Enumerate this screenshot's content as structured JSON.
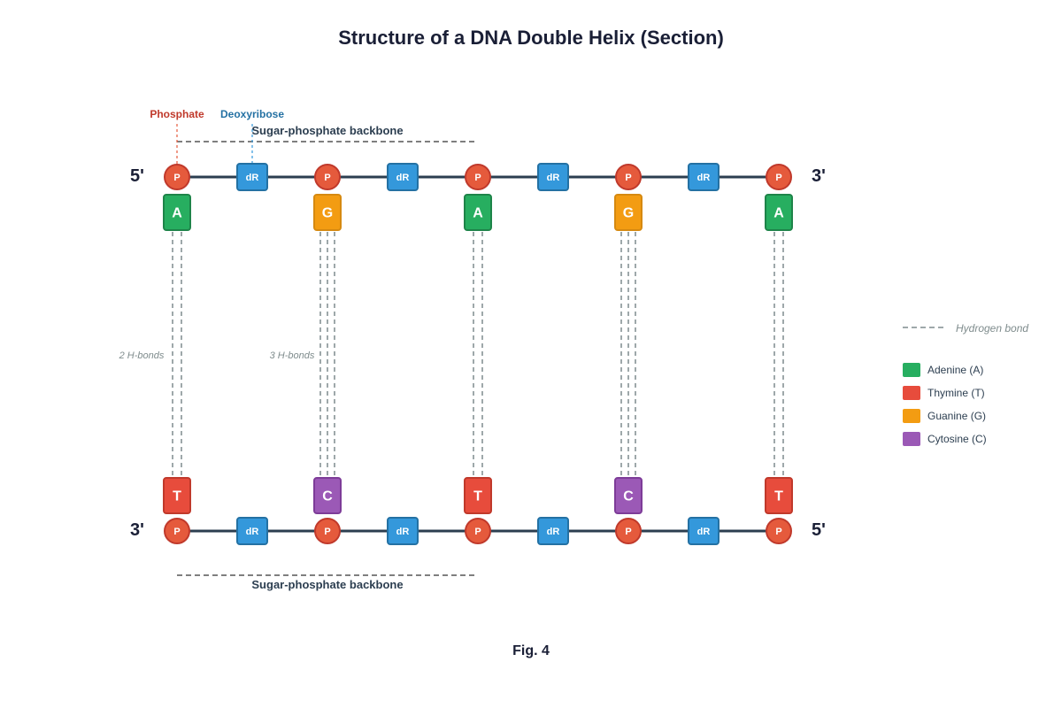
{
  "title": "Structure of a DNA Double Helix (Section)",
  "caption": "Fig. 4",
  "strands": {
    "top": {
      "left_end": "5'",
      "right_end": "3'"
    },
    "bottom": {
      "left_end": "3'",
      "right_end": "5'"
    }
  },
  "backbone_label": "Sugar-phosphate backbone",
  "callouts": {
    "phosphate": "Phosphate",
    "deoxyribose": "Deoxyribose"
  },
  "node_labels": {
    "phosphate": "P",
    "sugar": "dR"
  },
  "base_pairs": [
    {
      "top": "A",
      "bottom": "T",
      "bonds": 2
    },
    {
      "top": "G",
      "bottom": "C",
      "bonds": 3
    },
    {
      "top": "A",
      "bottom": "T",
      "bonds": 2
    },
    {
      "top": "G",
      "bottom": "C",
      "bonds": 3
    },
    {
      "top": "A",
      "bottom": "T",
      "bonds": 2
    }
  ],
  "bond_annotations": [
    "2 H-bonds",
    "3 H-bonds"
  ],
  "legend": {
    "hydrogen_bond": "Hydrogen bond",
    "items": [
      {
        "label": "Adenine (A)",
        "color": "#27ae60"
      },
      {
        "label": "Thymine (T)",
        "color": "#e74c3c"
      },
      {
        "label": "Guanine (G)",
        "color": "#f39c12"
      },
      {
        "label": "Cytosine (C)",
        "color": "#9b59b6"
      }
    ]
  },
  "colors": {
    "A": "#27ae60",
    "T": "#e74c3c",
    "G": "#f39c12",
    "C": "#9b59b6",
    "phosphate": "#e55a3c",
    "sugar": "#3498db",
    "backbone": "#2c3e50",
    "phosphate_callout": "#c0392b",
    "sugar_callout": "#2471a3",
    "hbond": "#7f8c8d"
  }
}
